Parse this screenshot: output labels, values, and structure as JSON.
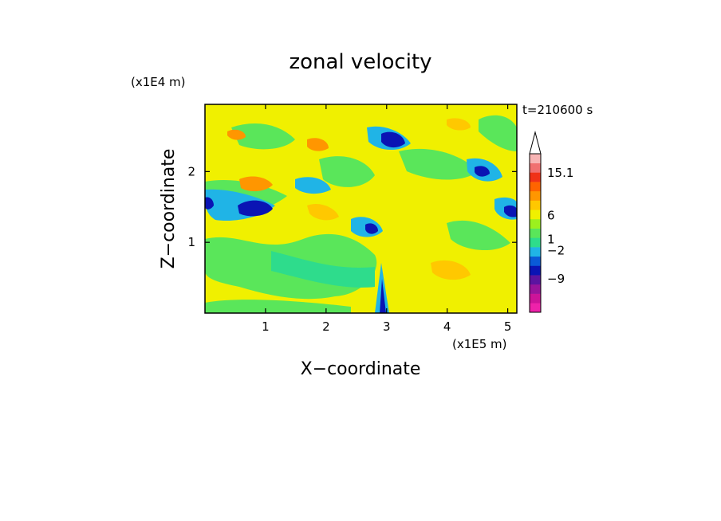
{
  "chart_data": {
    "type": "heatmap",
    "title": "zonal velocity",
    "xlabel": "X−coordinate",
    "ylabel": "Z−coordinate",
    "x_unit": "(x1E5 m)",
    "y_unit": "(x1E4 m)",
    "time_label": "t=210600 s",
    "xlim": [
      0,
      5.15
    ],
    "ylim": [
      0,
      2.95
    ],
    "x_ticks": [
      {
        "value": 1,
        "label": "1"
      },
      {
        "value": 2,
        "label": "2"
      },
      {
        "value": 3,
        "label": "3"
      },
      {
        "value": 4,
        "label": "4"
      },
      {
        "value": 5,
        "label": "5"
      }
    ],
    "y_ticks": [
      {
        "value": 1,
        "label": "1"
      },
      {
        "value": 2,
        "label": "2"
      }
    ],
    "colorbar": {
      "levels": [
        {
          "color": "#ee22aa"
        },
        {
          "color": "#cc1499"
        },
        {
          "color": "#99149b"
        },
        {
          "color": "#5c14a0"
        },
        {
          "color": "#0a14b4"
        },
        {
          "color": "#0a5ad7"
        },
        {
          "color": "#20b4e6"
        },
        {
          "color": "#2edc8c"
        },
        {
          "color": "#5ae65a"
        },
        {
          "color": "#9cf01e"
        },
        {
          "color": "#f0f000"
        },
        {
          "color": "#ffc800"
        },
        {
          "color": "#ff9600"
        },
        {
          "color": "#ff6400"
        },
        {
          "color": "#f03218"
        },
        {
          "color": "#f07070"
        },
        {
          "color": "#f7b4b4"
        }
      ],
      "labels": [
        {
          "text": "15.1",
          "frac": 0.88
        },
        {
          "text": "6",
          "frac": 0.61
        },
        {
          "text": "1",
          "frac": 0.46
        },
        {
          "text": "−2",
          "frac": 0.39
        },
        {
          "text": "−9",
          "frac": 0.21
        }
      ]
    }
  }
}
